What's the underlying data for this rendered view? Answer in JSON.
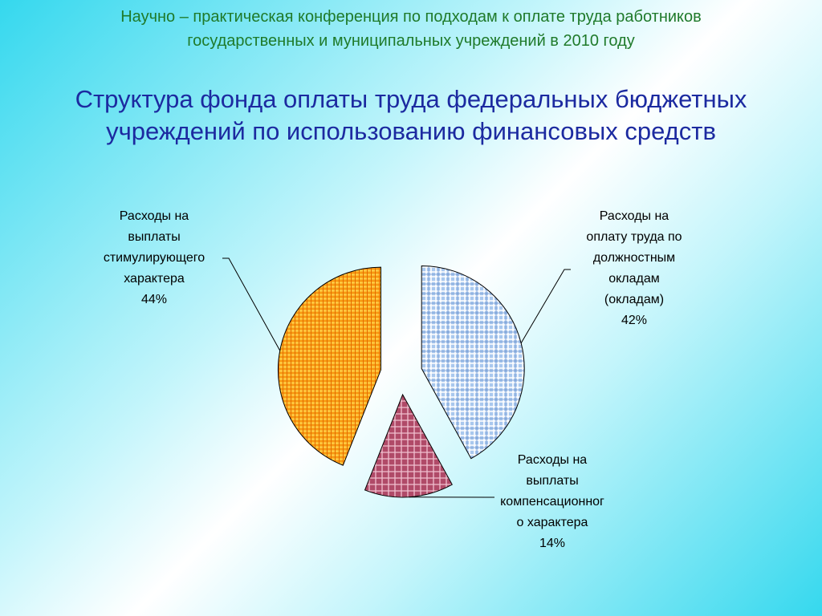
{
  "header": {
    "line1": "Научно – практическая конференция по подходам к оплате труда работников",
    "line2": "государственных и муниципальных учреждений в 2010 году"
  },
  "title": {
    "line1": "Структура фонда оплаты труда федеральных бюджетных",
    "line2": "учреждений по использованию финансовых средств"
  },
  "chart_data": {
    "type": "pie",
    "title": "Структура фонда оплаты труда федеральных бюджетных учреждений по использованию финансовых средств",
    "exploded": true,
    "slices": [
      {
        "label_lines": [
          "Расходы на",
          "оплату труда по",
          "должностным",
          "окладам",
          "(окладам)"
        ],
        "value": 42,
        "value_label": "42%",
        "color": "#a9c8ee",
        "pattern_color": "#ffffff",
        "pattern": "plaid"
      },
      {
        "label_lines": [
          "Расходы на",
          "выплаты",
          "компенсационног",
          "о характера"
        ],
        "value": 14,
        "value_label": "14%",
        "color": "#b04a68",
        "pattern_color": "#f0c0cf",
        "pattern": "grid"
      },
      {
        "label_lines": [
          "Расходы на",
          "выплаты",
          "стимулирующего",
          "характера"
        ],
        "value": 44,
        "value_label": "44%",
        "color": "#f79a12",
        "pattern_color": "#ffd24a",
        "pattern": "weave"
      }
    ],
    "legend": "none"
  }
}
